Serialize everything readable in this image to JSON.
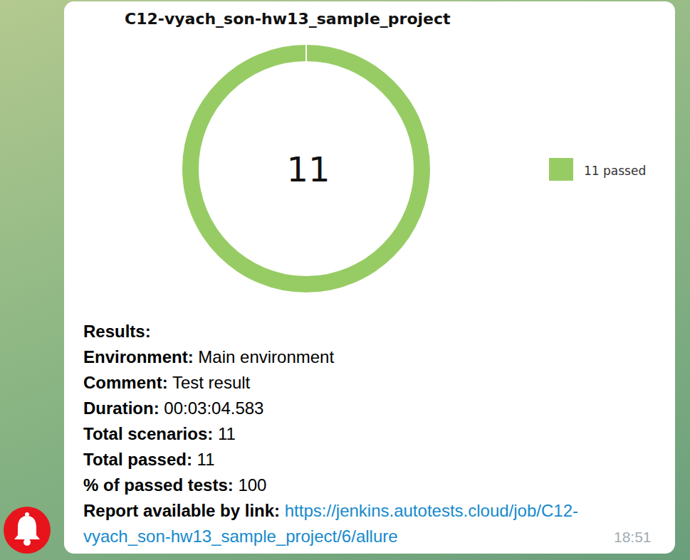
{
  "chart_data": {
    "type": "donut",
    "title": "C12-vyach_son-hw13_sample_project",
    "categories": [
      "11 passed"
    ],
    "values": [
      11
    ],
    "colors": [
      "#97cc64"
    ],
    "total": 11,
    "legend": "right"
  },
  "message": {
    "heading": "Results:",
    "fields": [
      {
        "label": "Environment:",
        "value": "Main environment"
      },
      {
        "label": "Comment:",
        "value": "Test result"
      },
      {
        "label": "Duration:",
        "value": "00:03:04.583"
      },
      {
        "label": "Total scenarios:",
        "value": "11"
      },
      {
        "label": "Total passed:",
        "value": "11"
      },
      {
        "label": "% of passed tests:",
        "value": "100"
      }
    ],
    "link": {
      "label": "Report available by link:",
      "lines": [
        "https://jenkins.autotests.cloud/job/C12-",
        "vyach_son-hw13_sample_project/6/allure"
      ]
    },
    "time": "18:51"
  }
}
